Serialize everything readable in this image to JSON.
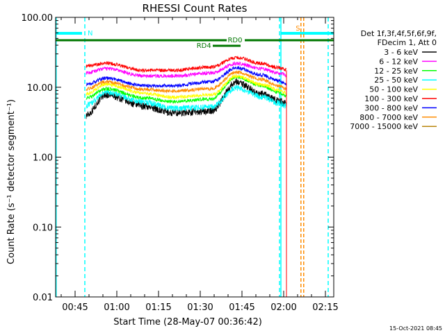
{
  "chart_data": {
    "type": "line",
    "title": "RHESSI Count Rates",
    "xlabel": "Start Time (28-May-07 00:36:42)",
    "ylabel": "Count Rate (s⁻¹ detector segment⁻¹)",
    "yscale": "log",
    "ylim": [
      0.01,
      100
    ],
    "xlim_minutes": [
      38,
      138
    ],
    "y_ticks": [
      {
        "value": 100,
        "label": "100.00"
      },
      {
        "value": 10,
        "label": "10.00"
      },
      {
        "value": 1,
        "label": "1.00"
      },
      {
        "value": 0.1,
        "label": "0.10"
      },
      {
        "value": 0.01,
        "label": "0.01"
      }
    ],
    "x_ticks": [
      {
        "minute": 45,
        "label": "00:45"
      },
      {
        "minute": 60,
        "label": "01:00"
      },
      {
        "minute": 75,
        "label": "01:15"
      },
      {
        "minute": 90,
        "label": "01:30"
      },
      {
        "minute": 105,
        "label": "01:45"
      },
      {
        "minute": 120,
        "label": "02:00"
      },
      {
        "minute": 135,
        "label": "02:15"
      }
    ],
    "time_anchor_minutes": [
      49,
      56,
      70,
      80,
      94,
      103,
      112,
      118,
      121
    ],
    "series": [
      {
        "name": "3 - 6 keV",
        "color": "#000000",
        "values": [
          4,
          7.8,
          5.4,
          4.3,
          4.6,
          12,
          8,
          6.5,
          5.8
        ]
      },
      {
        "name": "6 - 12 keV",
        "color": "#ff00ff",
        "values": [
          16,
          18.5,
          14.5,
          14.5,
          16,
          22,
          18.5,
          16,
          15
        ]
      },
      {
        "name": "12 - 25 keV",
        "color": "#00ff00",
        "values": [
          7,
          9.5,
          7,
          6.2,
          6.8,
          14,
          10.5,
          8.5,
          7.5
        ]
      },
      {
        "name": "25 - 50 keV",
        "color": "#00ffff",
        "values": [
          5.5,
          8.5,
          6.2,
          5,
          5.2,
          9.8,
          7.4,
          6,
          5.4
        ]
      },
      {
        "name": "50 - 100 keV",
        "color": "#ffff00",
        "values": [
          8,
          11,
          8.2,
          7.2,
          7.8,
          14.5,
          11,
          9.2,
          8.2
        ]
      },
      {
        "name": "100 - 300 keV",
        "color": "#ff0000",
        "values": [
          20,
          22,
          17.5,
          17.5,
          19.5,
          26.5,
          22,
          19,
          17.5
        ]
      },
      {
        "name": "300 - 800 keV",
        "color": "#0000ff",
        "values": [
          11,
          13.5,
          10.5,
          10.5,
          12,
          19,
          15,
          12.5,
          11
        ]
      },
      {
        "name": "800 - 7000 keV",
        "color": "#ff8c00",
        "values": [
          9.5,
          12,
          9.3,
          8.8,
          9.5,
          16.5,
          13,
          10.5,
          9.5
        ]
      },
      {
        "name": "7000 - 15000 keV",
        "color": "#b8860b",
        "values": [
          null,
          null,
          null,
          null,
          null,
          null,
          null,
          null,
          null
        ]
      }
    ],
    "annotations": [
      {
        "label": "N",
        "color": "#00ffff"
      },
      {
        "label": "S",
        "color": "#ff8c00"
      },
      {
        "label": "RD0",
        "color": "#007700"
      },
      {
        "label": "RD4",
        "color": "#007700"
      }
    ],
    "attenuator_info": [
      "Det 1f,3f,4f,5f,6f,9f,",
      "FDecim 1, Att 0"
    ],
    "legend_position": "right",
    "grid": false
  },
  "footer": {
    "date_stamp": "15-Oct-2021 08:45"
  }
}
